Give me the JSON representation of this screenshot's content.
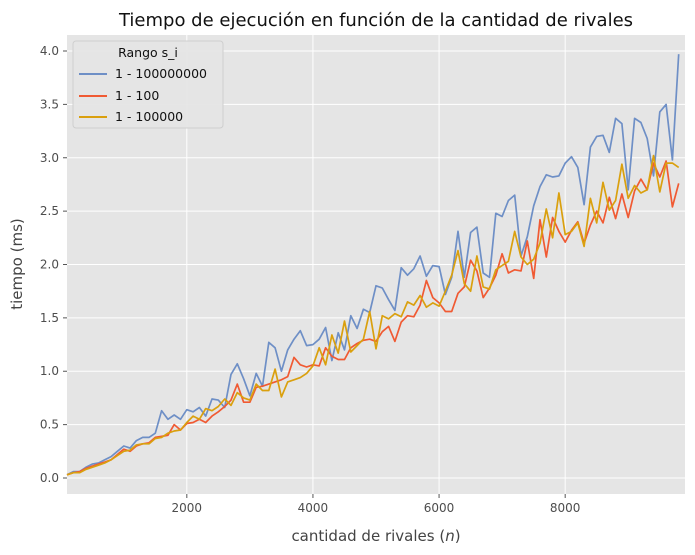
{
  "chart_data": {
    "type": "line",
    "title": "Tiempo de ejecución en función de la cantidad de rivales",
    "xlabel_main": "cantidad de rivales (",
    "xlabel_var": "n",
    "xlabel_end": ")",
    "ylabel": "tiempo (ms)",
    "xlim": [
      100,
      9900
    ],
    "ylim": [
      -0.15,
      4.15
    ],
    "xticks": [
      2000,
      4000,
      6000,
      8000
    ],
    "yticks": [
      0.0,
      0.5,
      1.0,
      1.5,
      2.0,
      2.5,
      3.0,
      3.5,
      4.0
    ],
    "x_start": 100,
    "x_step": 100,
    "grid": true,
    "legend": {
      "title": "Rango s_i",
      "position": "upper-left"
    },
    "series": [
      {
        "name": "1 - 100000000",
        "color": "#6e8fc6",
        "values": [
          0.03,
          0.06,
          0.06,
          0.1,
          0.13,
          0.14,
          0.17,
          0.2,
          0.25,
          0.3,
          0.28,
          0.35,
          0.38,
          0.38,
          0.42,
          0.63,
          0.55,
          0.59,
          0.55,
          0.64,
          0.62,
          0.66,
          0.58,
          0.74,
          0.73,
          0.66,
          0.97,
          1.07,
          0.93,
          0.77,
          0.98,
          0.86,
          1.27,
          1.22,
          1.0,
          1.2,
          1.3,
          1.38,
          1.24,
          1.25,
          1.3,
          1.41,
          1.1,
          1.36,
          1.2,
          1.52,
          1.4,
          1.58,
          1.55,
          1.8,
          1.78,
          1.67,
          1.57,
          1.97,
          1.9,
          1.96,
          2.08,
          1.89,
          1.99,
          1.98,
          1.72,
          1.88,
          2.31,
          1.88,
          2.3,
          2.35,
          1.92,
          1.88,
          2.48,
          2.45,
          2.6,
          2.65,
          2.08,
          2.26,
          2.55,
          2.73,
          2.84,
          2.82,
          2.83,
          2.95,
          3.01,
          2.91,
          2.56,
          3.1,
          3.2,
          3.21,
          3.05,
          3.37,
          3.32,
          2.7,
          3.37,
          3.33,
          3.18,
          2.83,
          3.43,
          3.5,
          2.98,
          3.97
        ]
      },
      {
        "name": "1 - 100",
        "color": "#f05a33",
        "values": [
          0.03,
          0.05,
          0.06,
          0.09,
          0.11,
          0.13,
          0.15,
          0.17,
          0.22,
          0.27,
          0.25,
          0.3,
          0.32,
          0.33,
          0.38,
          0.39,
          0.4,
          0.5,
          0.45,
          0.51,
          0.52,
          0.55,
          0.52,
          0.58,
          0.62,
          0.67,
          0.73,
          0.88,
          0.71,
          0.71,
          0.85,
          0.86,
          0.88,
          0.9,
          0.92,
          0.95,
          1.13,
          1.06,
          1.04,
          1.06,
          1.05,
          1.22,
          1.14,
          1.11,
          1.11,
          1.22,
          1.26,
          1.29,
          1.3,
          1.28,
          1.37,
          1.42,
          1.28,
          1.46,
          1.52,
          1.51,
          1.62,
          1.85,
          1.69,
          1.64,
          1.56,
          1.56,
          1.73,
          1.79,
          2.04,
          1.94,
          1.69,
          1.78,
          1.9,
          2.1,
          1.92,
          1.95,
          1.94,
          2.22,
          1.87,
          2.42,
          2.07,
          2.44,
          2.31,
          2.21,
          2.32,
          2.4,
          2.2,
          2.37,
          2.5,
          2.39,
          2.63,
          2.43,
          2.66,
          2.44,
          2.69,
          2.8,
          2.7,
          2.95,
          2.82,
          2.97,
          2.54,
          2.76
        ]
      },
      {
        "name": "1 - 100000",
        "color": "#daa00e",
        "values": [
          0.03,
          0.05,
          0.05,
          0.08,
          0.1,
          0.12,
          0.14,
          0.17,
          0.21,
          0.25,
          0.26,
          0.31,
          0.32,
          0.32,
          0.37,
          0.38,
          0.42,
          0.44,
          0.45,
          0.52,
          0.58,
          0.55,
          0.65,
          0.63,
          0.67,
          0.74,
          0.68,
          0.8,
          0.75,
          0.73,
          0.88,
          0.82,
          0.82,
          1.02,
          0.76,
          0.9,
          0.92,
          0.94,
          0.98,
          1.05,
          1.22,
          1.06,
          1.34,
          1.17,
          1.47,
          1.18,
          1.24,
          1.3,
          1.56,
          1.21,
          1.52,
          1.49,
          1.54,
          1.51,
          1.65,
          1.62,
          1.71,
          1.6,
          1.64,
          1.61,
          1.75,
          1.9,
          2.13,
          1.82,
          1.75,
          2.08,
          1.79,
          1.77,
          1.95,
          1.99,
          2.03,
          2.31,
          2.07,
          2.0,
          2.05,
          2.2,
          2.52,
          2.25,
          2.67,
          2.28,
          2.31,
          2.39,
          2.17,
          2.62,
          2.39,
          2.77,
          2.51,
          2.6,
          2.94,
          2.62,
          2.74,
          2.67,
          2.7,
          3.02,
          2.68,
          2.95,
          2.95,
          2.91
        ]
      }
    ]
  }
}
